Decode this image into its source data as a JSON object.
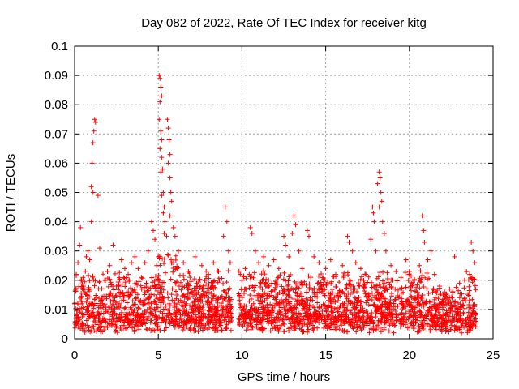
{
  "chart_data": {
    "type": "scatter",
    "title": "Day 082 of 2022, Rate Of TEC Index for receiver kitg",
    "xlabel": "GPS time / hours",
    "ylabel": "ROTI / TECUs",
    "xlim": [
      0,
      25
    ],
    "ylim": [
      0,
      0.1
    ],
    "x_ticks": [
      0,
      5,
      10,
      15,
      20,
      25
    ],
    "x_tick_labels": [
      "0",
      "5",
      "10",
      "15",
      "20",
      "25"
    ],
    "y_ticks": [
      0,
      0.01,
      0.02,
      0.03,
      0.04,
      0.05,
      0.06,
      0.07,
      0.08,
      0.09,
      0.1
    ],
    "y_tick_labels": [
      "0",
      "0.01",
      "0.02",
      "0.03",
      "0.04",
      "0.05",
      "0.06",
      "0.07",
      "0.08",
      "0.09",
      "0.1"
    ],
    "grid": true,
    "marker": "+",
    "color": "#ff0000",
    "data_gap": [
      9.4,
      9.8
    ],
    "x_range": [
      0.0,
      24.0
    ],
    "series": [
      {
        "name": "ROTI",
        "points": [
          [
            0.1,
            0.022
          ],
          [
            0.2,
            0.026
          ],
          [
            0.3,
            0.032
          ],
          [
            0.35,
            0.038
          ],
          [
            0.5,
            0.021
          ],
          [
            0.7,
            0.028
          ],
          [
            0.8,
            0.03
          ],
          [
            0.9,
            0.027
          ],
          [
            1.0,
            0.052
          ],
          [
            1.05,
            0.06
          ],
          [
            1.1,
            0.067
          ],
          [
            1.15,
            0.071
          ],
          [
            1.2,
            0.075
          ],
          [
            1.25,
            0.074
          ],
          [
            1.0,
            0.04
          ],
          [
            1.1,
            0.05
          ],
          [
            1.4,
            0.049
          ],
          [
            1.5,
            0.031
          ],
          [
            1.8,
            0.02
          ],
          [
            2.1,
            0.025
          ],
          [
            2.3,
            0.032
          ],
          [
            2.5,
            0.018
          ],
          [
            2.8,
            0.027
          ],
          [
            3.0,
            0.024
          ],
          [
            3.2,
            0.022
          ],
          [
            3.4,
            0.026
          ],
          [
            3.6,
            0.028
          ],
          [
            3.8,
            0.024
          ],
          [
            4.0,
            0.021
          ],
          [
            4.2,
            0.026
          ],
          [
            4.4,
            0.03
          ],
          [
            4.6,
            0.04
          ],
          [
            4.7,
            0.037
          ],
          [
            4.8,
            0.034
          ],
          [
            4.9,
            0.025
          ],
          [
            5.0,
            0.028
          ],
          [
            5.05,
            0.09
          ],
          [
            5.1,
            0.089
          ],
          [
            5.15,
            0.086
          ],
          [
            5.2,
            0.083
          ],
          [
            5.1,
            0.081
          ],
          [
            5.05,
            0.075
          ],
          [
            5.15,
            0.071
          ],
          [
            5.2,
            0.068
          ],
          [
            5.1,
            0.065
          ],
          [
            5.2,
            0.062
          ],
          [
            5.25,
            0.058
          ],
          [
            5.15,
            0.057
          ],
          [
            5.3,
            0.05
          ],
          [
            5.2,
            0.049
          ],
          [
            5.35,
            0.045
          ],
          [
            5.3,
            0.043
          ],
          [
            5.4,
            0.04
          ],
          [
            5.35,
            0.036
          ],
          [
            5.5,
            0.035
          ],
          [
            5.55,
            0.075
          ],
          [
            5.6,
            0.072
          ],
          [
            5.65,
            0.068
          ],
          [
            5.7,
            0.063
          ],
          [
            5.6,
            0.06
          ],
          [
            5.7,
            0.055
          ],
          [
            5.75,
            0.05
          ],
          [
            5.8,
            0.047
          ],
          [
            5.7,
            0.042
          ],
          [
            5.9,
            0.038
          ],
          [
            6.0,
            0.035
          ],
          [
            6.2,
            0.03
          ],
          [
            6.5,
            0.026
          ],
          [
            6.8,
            0.023
          ],
          [
            7.2,
            0.028
          ],
          [
            7.6,
            0.025
          ],
          [
            8.0,
            0.022
          ],
          [
            8.3,
            0.026
          ],
          [
            8.6,
            0.023
          ],
          [
            8.9,
            0.035
          ],
          [
            9.0,
            0.045
          ],
          [
            9.1,
            0.04
          ],
          [
            9.2,
            0.03
          ],
          [
            9.3,
            0.026
          ],
          [
            9.9,
            0.022
          ],
          [
            10.2,
            0.024
          ],
          [
            10.5,
            0.038
          ],
          [
            10.6,
            0.036
          ],
          [
            10.8,
            0.03
          ],
          [
            11.0,
            0.026
          ],
          [
            11.3,
            0.028
          ],
          [
            11.6,
            0.025
          ],
          [
            11.9,
            0.027
          ],
          [
            12.2,
            0.024
          ],
          [
            12.5,
            0.035
          ],
          [
            12.6,
            0.032
          ],
          [
            12.8,
            0.028
          ],
          [
            13.0,
            0.036
          ],
          [
            13.1,
            0.042
          ],
          [
            13.2,
            0.039
          ],
          [
            13.4,
            0.03
          ],
          [
            13.6,
            0.024
          ],
          [
            13.9,
            0.037
          ],
          [
            14.0,
            0.035
          ],
          [
            14.3,
            0.028
          ],
          [
            14.6,
            0.026
          ],
          [
            15.0,
            0.024
          ],
          [
            15.3,
            0.027
          ],
          [
            15.6,
            0.022
          ],
          [
            16.0,
            0.025
          ],
          [
            16.3,
            0.035
          ],
          [
            16.4,
            0.033
          ],
          [
            16.6,
            0.03
          ],
          [
            16.8,
            0.026
          ],
          [
            17.1,
            0.024
          ],
          [
            17.4,
            0.022
          ],
          [
            17.7,
            0.034
          ],
          [
            17.8,
            0.045
          ],
          [
            17.85,
            0.043
          ],
          [
            17.9,
            0.04
          ],
          [
            18.0,
            0.03
          ],
          [
            18.1,
            0.053
          ],
          [
            18.2,
            0.057
          ],
          [
            18.25,
            0.055
          ],
          [
            18.3,
            0.05
          ],
          [
            18.35,
            0.047
          ],
          [
            18.2,
            0.045
          ],
          [
            18.4,
            0.04
          ],
          [
            18.5,
            0.036
          ],
          [
            18.6,
            0.03
          ],
          [
            18.9,
            0.025
          ],
          [
            19.2,
            0.023
          ],
          [
            19.5,
            0.021
          ],
          [
            19.8,
            0.027
          ],
          [
            20.0,
            0.023
          ],
          [
            20.3,
            0.02
          ],
          [
            20.6,
            0.025
          ],
          [
            20.8,
            0.042
          ],
          [
            20.85,
            0.037
          ],
          [
            20.9,
            0.033
          ],
          [
            21.1,
            0.027
          ],
          [
            21.3,
            0.03
          ],
          [
            21.5,
            0.022
          ],
          [
            21.8,
            0.018
          ],
          [
            22.1,
            0.016
          ],
          [
            22.4,
            0.017
          ],
          [
            22.7,
            0.028
          ],
          [
            23.0,
            0.019
          ],
          [
            23.3,
            0.02
          ],
          [
            23.6,
            0.022
          ],
          [
            23.7,
            0.033
          ],
          [
            23.8,
            0.03
          ],
          [
            23.9,
            0.026
          ]
        ]
      }
    ]
  }
}
